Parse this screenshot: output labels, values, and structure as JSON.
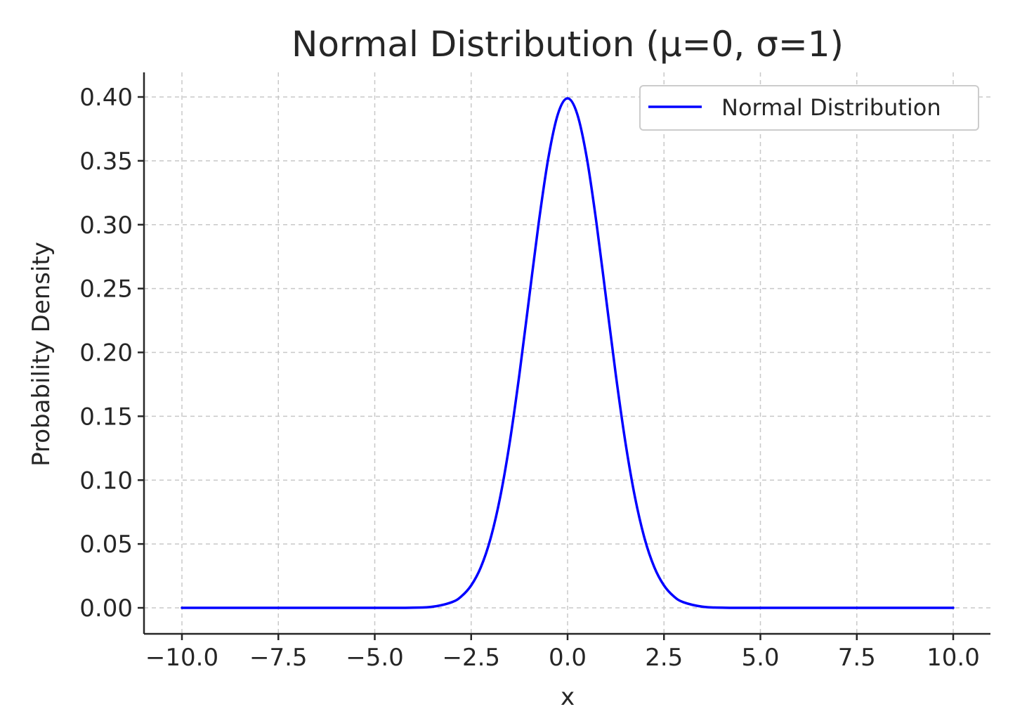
{
  "chart_data": {
    "type": "line",
    "title": "Normal Distribution (μ=0, σ=1)",
    "xlabel": "x",
    "ylabel": "Probability Density",
    "xlim": [
      -10.0,
      10.0
    ],
    "ylim": [
      0.0,
      0.4
    ],
    "x_ticks": [
      "−10.0",
      "−7.5",
      "−5.0",
      "−2.5",
      "0.0",
      "2.5",
      "5.0",
      "7.5",
      "10.0"
    ],
    "y_ticks": [
      "0.00",
      "0.05",
      "0.10",
      "0.15",
      "0.20",
      "0.25",
      "0.30",
      "0.35",
      "0.40"
    ],
    "grid": true,
    "legend_position": "top-right",
    "series": [
      {
        "name": "Normal Distribution",
        "color": "#0000ff",
        "x": [
          -10,
          -5,
          -4,
          -3.5,
          -3,
          -2.75,
          -2.5,
          -2.25,
          -2,
          -1.75,
          -1.5,
          -1.25,
          -1,
          -0.75,
          -0.5,
          -0.25,
          0,
          0.25,
          0.5,
          0.75,
          1,
          1.25,
          1.5,
          1.75,
          2,
          2.25,
          2.5,
          2.75,
          3,
          3.5,
          4,
          5,
          10
        ],
        "y": [
          0.0,
          1.5e-06,
          0.000134,
          0.000873,
          0.004432,
          0.009094,
          0.017528,
          0.03174,
          0.053991,
          0.086277,
          0.129518,
          0.182649,
          0.241971,
          0.301137,
          0.352065,
          0.386668,
          0.398942,
          0.386668,
          0.352065,
          0.301137,
          0.241971,
          0.182649,
          0.129518,
          0.086277,
          0.053991,
          0.03174,
          0.017528,
          0.009094,
          0.004432,
          0.000873,
          0.000134,
          1.5e-06,
          0.0
        ]
      }
    ]
  }
}
